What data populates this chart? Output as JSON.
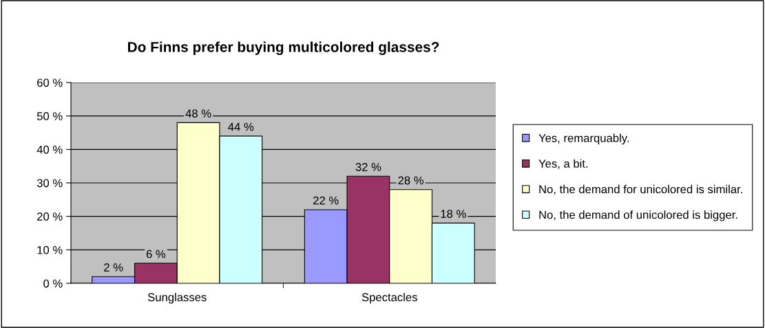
{
  "chart_data": {
    "type": "bar",
    "title": "Do Finns prefer buying multicolored glasses?",
    "categories": [
      "Sunglasses",
      "Spectacles"
    ],
    "series": [
      {
        "name": "Yes, remarquably.",
        "color": "#9999ff",
        "values": [
          2,
          22
        ],
        "value_labels": [
          "2 %",
          "22 %"
        ]
      },
      {
        "name": "Yes, a bit.",
        "color": "#993366",
        "values": [
          6,
          32
        ],
        "value_labels": [
          "6 %",
          "32 %"
        ]
      },
      {
        "name": "No, the demand for unicolored is similar.",
        "color": "#ffffcc",
        "values": [
          48,
          28
        ],
        "value_labels": [
          "48 %",
          "28 %"
        ]
      },
      {
        "name": "No, the demand of unicolored is bigger.",
        "color": "#ccffff",
        "values": [
          44,
          18
        ],
        "value_labels": [
          "44 %",
          "18 %"
        ]
      }
    ],
    "ylim": [
      0,
      60
    ],
    "yticks": [
      {
        "value": 0,
        "label": "0 %"
      },
      {
        "value": 10,
        "label": "10 %"
      },
      {
        "value": 20,
        "label": "20 %"
      },
      {
        "value": 30,
        "label": "30 %"
      },
      {
        "value": 40,
        "label": "40 %"
      },
      {
        "value": 50,
        "label": "50 %"
      },
      {
        "value": 60,
        "label": "60 %"
      }
    ],
    "grid": "y",
    "legend": "right"
  }
}
